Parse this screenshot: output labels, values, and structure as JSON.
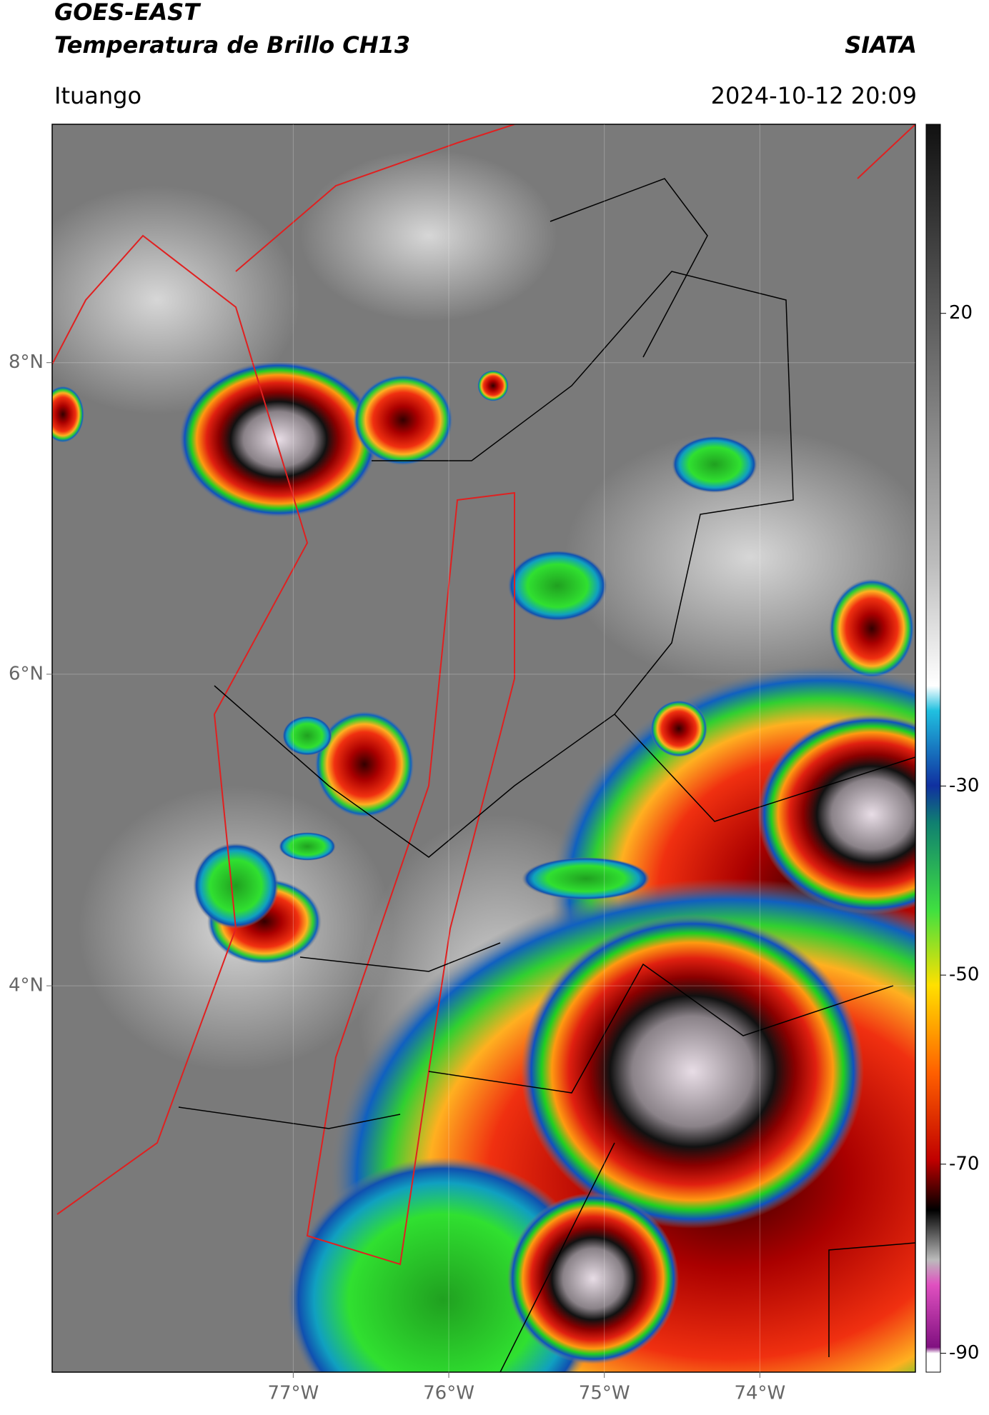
{
  "header": {
    "title": "GOES-EAST",
    "subtitle": "Temperatura de Brillo CH13",
    "source": "SIATA",
    "location": "Ituango",
    "datetime": "2024-10-12 20:09"
  },
  "map": {
    "xlim": [
      -78.55,
      -73.0
    ],
    "ylim": [
      1.52,
      9.53
    ],
    "xticks": [
      {
        "value": -77,
        "label": "77°W"
      },
      {
        "value": -76,
        "label": "76°W"
      },
      {
        "value": -75,
        "label": "75°W"
      },
      {
        "value": -74,
        "label": "74°W"
      }
    ],
    "yticks": [
      {
        "value": 8,
        "label": "8°N"
      },
      {
        "value": 6,
        "label": "6°N"
      },
      {
        "value": 4,
        "label": "4°N"
      }
    ],
    "grid": true
  },
  "colorbar": {
    "clim": [
      -92,
      40
    ],
    "ticks": [
      20,
      -30,
      -50,
      -70,
      -90
    ]
  }
}
